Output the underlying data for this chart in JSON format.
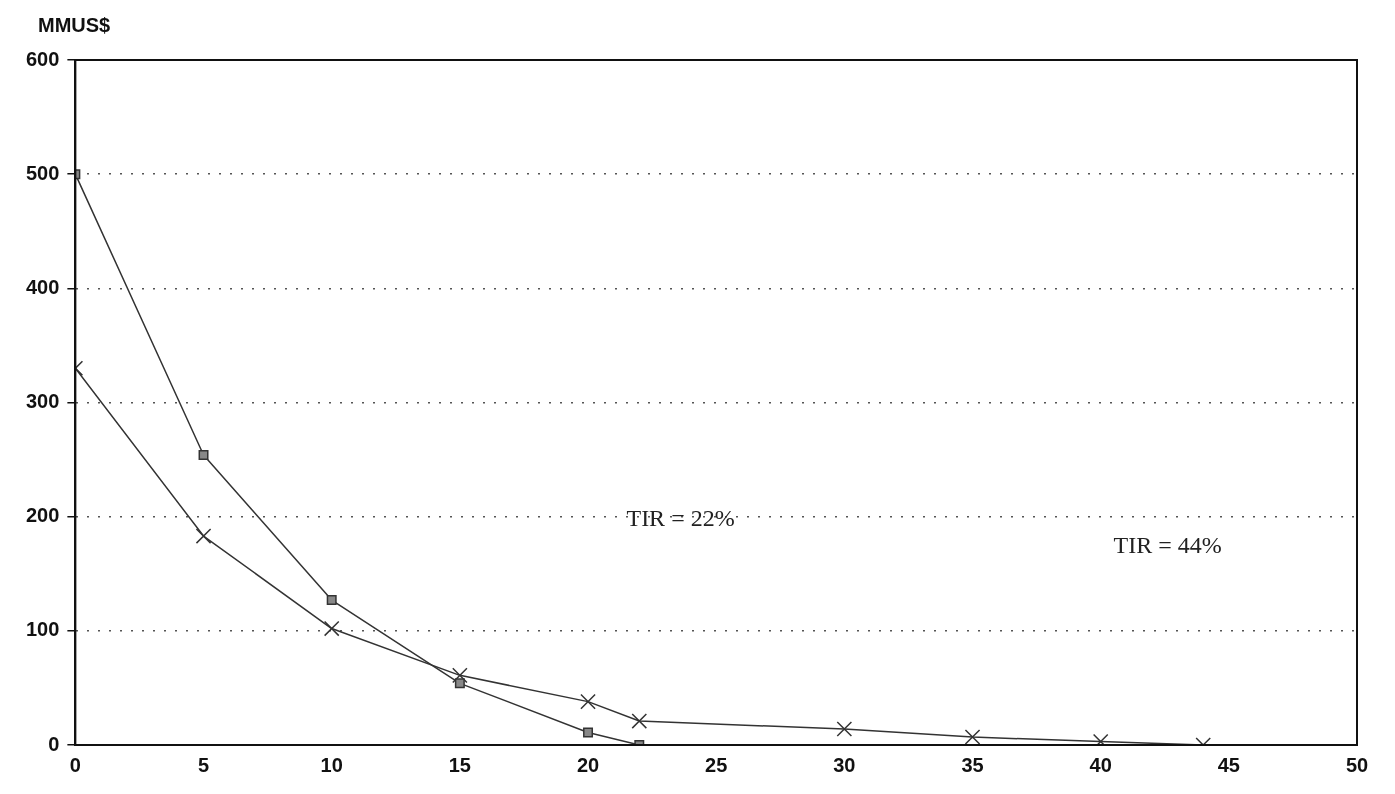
{
  "chart_data": {
    "type": "line",
    "ylabel": "MMUS$",
    "xlim": [
      0,
      50
    ],
    "xticks": [
      0,
      5,
      10,
      15,
      20,
      25,
      30,
      35,
      40,
      45,
      50
    ],
    "ylim": [
      0,
      600
    ],
    "yticks": [
      0,
      100,
      200,
      300,
      400,
      500,
      600
    ],
    "grid": "y",
    "legend": false,
    "line_style": "solid",
    "series": [
      {
        "color": "#333333",
        "marker": "square",
        "x": [
          0,
          5,
          10,
          15,
          20,
          22
        ],
        "values": [
          500,
          254,
          127,
          54,
          11,
          0
        ]
      },
      {
        "color": "#333333",
        "marker": "cross",
        "x": [
          0,
          5,
          10,
          15,
          20,
          22,
          30,
          35,
          40,
          44
        ],
        "values": [
          330,
          183,
          102,
          61,
          38,
          21,
          14,
          7,
          3,
          0
        ]
      }
    ],
    "annotations": [
      "TIR = 22%",
      "TIR = 44%"
    ]
  }
}
